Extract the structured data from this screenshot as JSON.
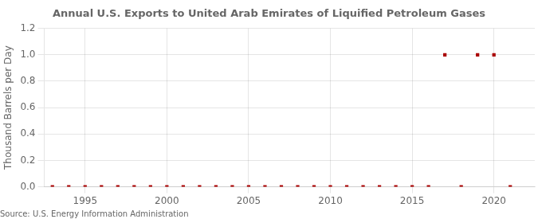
{
  "chart_data": {
    "type": "scatter",
    "title": "Annual U.S. Exports to United Arab Emirates of Liquified Petroleum Gases",
    "ylabel": "Thousand Barrels per Day",
    "annotations": [
      "Source: U.S. Energy Information Administration"
    ],
    "x": [
      1993,
      1994,
      1995,
      1996,
      1997,
      1998,
      1999,
      2000,
      2001,
      2002,
      2003,
      2004,
      2005,
      2006,
      2007,
      2008,
      2009,
      2010,
      2011,
      2012,
      2013,
      2014,
      2015,
      2016,
      2017,
      2018,
      2019,
      2020,
      2021
    ],
    "values": [
      0,
      0,
      0,
      0,
      0,
      0,
      0,
      0,
      0,
      0,
      0,
      0,
      0,
      0,
      0,
      0,
      0,
      0,
      0,
      0,
      0,
      0,
      0,
      0,
      1,
      0,
      1,
      1,
      0
    ],
    "color": "#aa0000",
    "marker": "square",
    "xlim": [
      1992.5,
      2022.5
    ],
    "xticks": [
      1995,
      2000,
      2005,
      2010,
      2015,
      2020
    ],
    "ylim": [
      0,
      1.2
    ],
    "yticks": [
      {
        "value": 0,
        "label": "0.0"
      },
      0.2,
      0.4,
      0.6,
      0.8,
      {
        "value": 1,
        "label": "1.0"
      },
      1.2
    ],
    "grid": true
  }
}
